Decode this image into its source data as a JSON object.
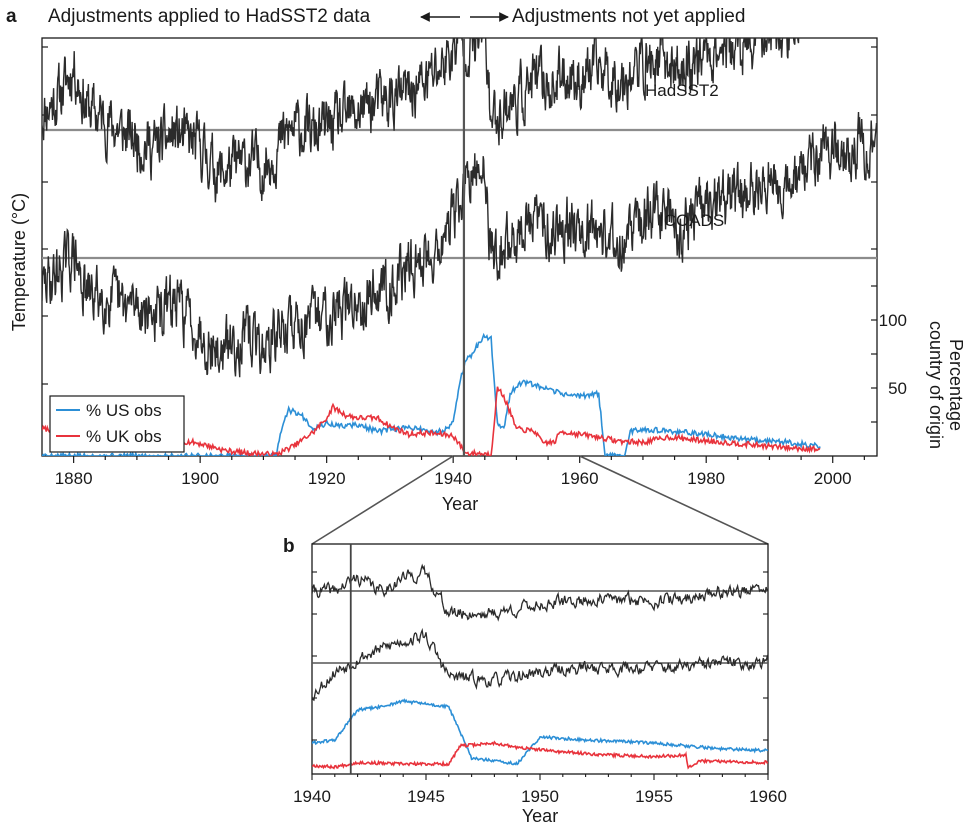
{
  "panel_a": {
    "letter": "a",
    "header_left": "Adjustments applied to HadSST2 data",
    "header_right": "Adjustments not yet applied",
    "xlabel": "Year",
    "ylabel_left": "Temperature (°C)",
    "ylabel_right_1": "Percentage",
    "ylabel_right_2": "country of origin",
    "series_label_hadsst2": "HadSST2",
    "series_label_icoads": "ICOADS"
  },
  "panel_b": {
    "letter": "b",
    "xlabel": "Year"
  },
  "legend": {
    "us": "% US obs",
    "uk": "% UK obs"
  },
  "colors": {
    "temperature": "#2b2b2b",
    "us": "#2c8fd6",
    "uk": "#e8333c",
    "reference_line": "#8c8c8c"
  },
  "chart_data": [
    {
      "id": "a",
      "type": "line",
      "x_label": "Year",
      "y_label": "Temperature (°C)",
      "y2_label": "Percentage country of origin",
      "x_range": [
        1875,
        2007
      ],
      "x_ticks": [
        1880,
        1900,
        1920,
        1940,
        1960,
        1980,
        2000
      ],
      "y2_ticks": [
        50,
        100
      ],
      "y2_range": [
        0,
        140
      ],
      "vertical_marker_year": 1941.7,
      "legend_position": "bottom-left",
      "series": [
        {
          "name": "HadSST2",
          "axis": "left",
          "offset_level": 1.6,
          "points": [
            [
              1875,
              -0.1
            ],
            [
              1878,
              0.05
            ],
            [
              1880,
              0.25
            ],
            [
              1882,
              -0.05
            ],
            [
              1885,
              -0.15
            ],
            [
              1888,
              -0.25
            ],
            [
              1890,
              -0.3
            ],
            [
              1893,
              -0.35
            ],
            [
              1896,
              -0.25
            ],
            [
              1898,
              -0.3
            ],
            [
              1900,
              -0.35
            ],
            [
              1903,
              -0.55
            ],
            [
              1905,
              -0.5
            ],
            [
              1908,
              -0.45
            ],
            [
              1910,
              -0.5
            ],
            [
              1913,
              -0.3
            ],
            [
              1915,
              -0.2
            ],
            [
              1918,
              -0.25
            ],
            [
              1920,
              -0.2
            ],
            [
              1923,
              -0.15
            ],
            [
              1926,
              -0.05
            ],
            [
              1930,
              0.0
            ],
            [
              1933,
              0.05
            ],
            [
              1936,
              0.15
            ],
            [
              1939,
              0.3
            ],
            [
              1941,
              0.45
            ],
            [
              1943,
              0.4
            ],
            [
              1945,
              0.5
            ],
            [
              1946,
              -0.15
            ],
            [
              1948,
              -0.05
            ],
            [
              1950,
              0.0
            ],
            [
              1953,
              0.15
            ],
            [
              1956,
              0.1
            ],
            [
              1958,
              0.2
            ],
            [
              1960,
              0.15
            ],
            [
              1963,
              0.25
            ],
            [
              1966,
              0.15
            ],
            [
              1968,
              0.2
            ],
            [
              1970,
              0.25
            ],
            [
              1973,
              0.3
            ],
            [
              1976,
              0.2
            ],
            [
              1978,
              0.3
            ],
            [
              1980,
              0.35
            ],
            [
              1983,
              0.4
            ],
            [
              1986,
              0.35
            ],
            [
              1990,
              0.55
            ],
            [
              1993,
              0.5
            ],
            [
              1996,
              0.7
            ],
            [
              1998,
              0.85
            ],
            [
              2001,
              0.85
            ],
            [
              2004,
              0.9
            ],
            [
              2007,
              0.95
            ]
          ]
        },
        {
          "name": "ICOADS",
          "axis": "left",
          "offset_level": 0.65,
          "points": [
            [
              1875,
              -0.45
            ],
            [
              1878,
              -0.3
            ],
            [
              1880,
              -0.2
            ],
            [
              1882,
              -0.5
            ],
            [
              1885,
              -0.5
            ],
            [
              1888,
              -0.6
            ],
            [
              1890,
              -0.55
            ],
            [
              1893,
              -0.65
            ],
            [
              1896,
              -0.55
            ],
            [
              1898,
              -0.65
            ],
            [
              1900,
              -0.75
            ],
            [
              1903,
              -0.95
            ],
            [
              1905,
              -0.85
            ],
            [
              1908,
              -0.8
            ],
            [
              1910,
              -0.9
            ],
            [
              1913,
              -0.75
            ],
            [
              1915,
              -0.7
            ],
            [
              1918,
              -0.7
            ],
            [
              1920,
              -0.6
            ],
            [
              1923,
              -0.6
            ],
            [
              1926,
              -0.5
            ],
            [
              1930,
              -0.4
            ],
            [
              1933,
              -0.3
            ],
            [
              1936,
              -0.2
            ],
            [
              1939,
              -0.05
            ],
            [
              1941,
              0.2
            ],
            [
              1943,
              0.35
            ],
            [
              1945,
              0.45
            ],
            [
              1946,
              -0.2
            ],
            [
              1948,
              -0.15
            ],
            [
              1950,
              -0.05
            ],
            [
              1953,
              0.05
            ],
            [
              1956,
              0.0
            ],
            [
              1958,
              0.05
            ],
            [
              1960,
              0.05
            ],
            [
              1963,
              0.0
            ],
            [
              1966,
              -0.1
            ],
            [
              1968,
              -0.05
            ],
            [
              1970,
              0.05
            ],
            [
              1973,
              0.15
            ],
            [
              1976,
              0.0
            ],
            [
              1978,
              0.1
            ],
            [
              1980,
              0.15
            ],
            [
              1983,
              0.2
            ],
            [
              1986,
              0.25
            ],
            [
              1990,
              0.35
            ],
            [
              1993,
              0.3
            ],
            [
              1996,
              0.45
            ],
            [
              1998,
              0.55
            ],
            [
              2001,
              0.55
            ],
            [
              2004,
              0.6
            ],
            [
              2007,
              0.65
            ]
          ]
        },
        {
          "name": "% US obs",
          "axis": "right",
          "points": [
            [
              1875,
              0
            ],
            [
              1912,
              0
            ],
            [
              1913,
              22
            ],
            [
              1914,
              34
            ],
            [
              1916,
              30
            ],
            [
              1918,
              20
            ],
            [
              1920,
              24
            ],
            [
              1922,
              22
            ],
            [
              1925,
              23
            ],
            [
              1928,
              18
            ],
            [
              1931,
              20
            ],
            [
              1934,
              21
            ],
            [
              1937,
              17
            ],
            [
              1939,
              20
            ],
            [
              1940,
              25
            ],
            [
              1941,
              54
            ],
            [
              1942,
              70
            ],
            [
              1943,
              74
            ],
            [
              1944,
              83
            ],
            [
              1945,
              88
            ],
            [
              1946,
              86
            ],
            [
              1947,
              24
            ],
            [
              1948,
              20
            ],
            [
              1949,
              46
            ],
            [
              1951,
              55
            ],
            [
              1954,
              50
            ],
            [
              1957,
              46
            ],
            [
              1960,
              44
            ],
            [
              1963,
              46
            ],
            [
              1964,
              0
            ],
            [
              1967,
              0
            ],
            [
              1968,
              18
            ],
            [
              1970,
              20
            ],
            [
              1974,
              18
            ],
            [
              1978,
              17
            ],
            [
              1983,
              14
            ],
            [
              1988,
              12
            ],
            [
              1993,
              10
            ],
            [
              1998,
              7
            ]
          ]
        },
        {
          "name": "% UK obs",
          "axis": "right",
          "points": [
            [
              1875,
              20
            ],
            [
              1880,
              18
            ],
            [
              1885,
              16
            ],
            [
              1890,
              14
            ],
            [
              1895,
              12
            ],
            [
              1899,
              10
            ],
            [
              1901,
              8
            ],
            [
              1904,
              4
            ],
            [
              1908,
              2
            ],
            [
              1912,
              1
            ],
            [
              1915,
              8
            ],
            [
              1918,
              18
            ],
            [
              1920,
              28
            ],
            [
              1921,
              36
            ],
            [
              1923,
              30
            ],
            [
              1925,
              28
            ],
            [
              1928,
              28
            ],
            [
              1930,
              22
            ],
            [
              1933,
              16
            ],
            [
              1936,
              17
            ],
            [
              1940,
              15
            ],
            [
              1942,
              2
            ],
            [
              1944,
              2
            ],
            [
              1946,
              1
            ],
            [
              1947,
              50
            ],
            [
              1948,
              44
            ],
            [
              1950,
              20
            ],
            [
              1953,
              18
            ],
            [
              1954,
              10
            ],
            [
              1956,
              10
            ],
            [
              1957,
              18
            ],
            [
              1960,
              16
            ],
            [
              1963,
              14
            ],
            [
              1966,
              11
            ],
            [
              1970,
              10
            ],
            [
              1974,
              14
            ],
            [
              1978,
              12
            ],
            [
              1983,
              10
            ],
            [
              1988,
              8
            ],
            [
              1993,
              6
            ],
            [
              1998,
              5
            ]
          ]
        }
      ]
    },
    {
      "id": "b",
      "type": "line",
      "x_label": "Year",
      "x_range": [
        1940,
        1960
      ],
      "x_ticks": [
        1940,
        1945,
        1950,
        1955,
        1960
      ],
      "vertical_marker_year": 1941.7,
      "series": [
        {
          "name": "HadSST2",
          "points": [
            [
              1940,
              0.0
            ],
            [
              1941,
              0.0
            ],
            [
              1942,
              0.15
            ],
            [
              1943,
              0.0
            ],
            [
              1944,
              0.15
            ],
            [
              1945,
              0.2
            ],
            [
              1946,
              -0.25
            ],
            [
              1948,
              -0.25
            ],
            [
              1950,
              -0.15
            ],
            [
              1952,
              -0.1
            ],
            [
              1954,
              -0.1
            ],
            [
              1956,
              -0.1
            ],
            [
              1958,
              0.0
            ],
            [
              1960,
              0.0
            ]
          ]
        },
        {
          "name": "ICOADS",
          "points": [
            [
              1940,
              -0.35
            ],
            [
              1941,
              -0.1
            ],
            [
              1942,
              0.05
            ],
            [
              1943,
              0.15
            ],
            [
              1944,
              0.25
            ],
            [
              1945,
              0.3
            ],
            [
              1946,
              -0.15
            ],
            [
              1948,
              -0.2
            ],
            [
              1950,
              -0.1
            ],
            [
              1952,
              -0.05
            ],
            [
              1954,
              -0.05
            ],
            [
              1956,
              -0.05
            ],
            [
              1958,
              0.0
            ],
            [
              1960,
              0.0
            ]
          ]
        },
        {
          "name": "% US obs",
          "points": [
            [
              1940,
              18
            ],
            [
              1941,
              20
            ],
            [
              1942,
              40
            ],
            [
              1943,
              42
            ],
            [
              1944,
              46
            ],
            [
              1945,
              44
            ],
            [
              1946,
              42
            ],
            [
              1947,
              8
            ],
            [
              1949,
              4
            ],
            [
              1950,
              22
            ],
            [
              1952,
              20
            ],
            [
              1955,
              18
            ],
            [
              1958,
              14
            ],
            [
              1960,
              13
            ]
          ]
        },
        {
          "name": "% UK obs",
          "points": [
            [
              1940,
              3
            ],
            [
              1941,
              2
            ],
            [
              1942,
              5
            ],
            [
              1944,
              4
            ],
            [
              1946,
              4
            ],
            [
              1946.5,
              16
            ],
            [
              1948,
              18
            ],
            [
              1949,
              15
            ],
            [
              1951,
              12
            ],
            [
              1953,
              10
            ],
            [
              1955,
              9
            ],
            [
              1956.4,
              10
            ],
            [
              1956.5,
              2
            ],
            [
              1957,
              6
            ],
            [
              1960,
              5
            ]
          ]
        }
      ]
    }
  ]
}
